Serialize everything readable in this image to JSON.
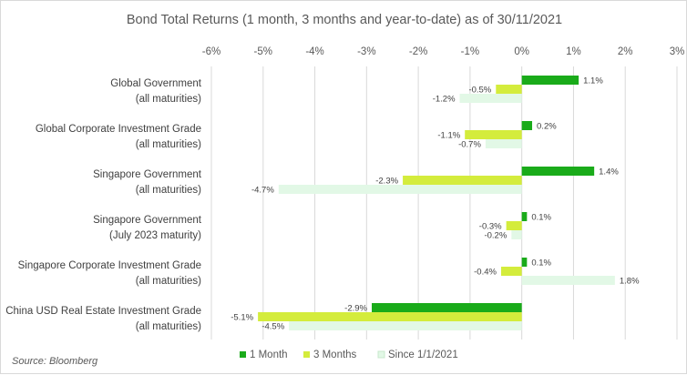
{
  "chart_data": {
    "type": "bar",
    "orientation": "horizontal",
    "title": "Bond Total Returns (1 month, 3 months and year-to-date) as of 30/11/2021",
    "categories": [
      [
        "Global Government",
        "(all maturities)"
      ],
      [
        "Global Corporate Investment Grade",
        "(all maturities)"
      ],
      [
        "Singapore Government",
        "(all maturities)"
      ],
      [
        "Singapore Government",
        "(July 2023 maturity)"
      ],
      [
        "Singapore Corporate Investment Grade",
        "(all maturities)"
      ],
      [
        "China USD Real Estate Investment Grade",
        "(all maturities)"
      ]
    ],
    "series": [
      {
        "name": "1 Month",
        "color": "#1aab1a",
        "values": [
          1.1,
          0.2,
          1.4,
          0.1,
          0.1,
          -2.9
        ]
      },
      {
        "name": "3 Months",
        "color": "#d4ec3c",
        "values": [
          -0.5,
          -1.1,
          -2.3,
          -0.3,
          -0.4,
          -5.1
        ]
      },
      {
        "name": "Since 1/1/2021",
        "color": "#e2f8e6",
        "values": [
          -1.2,
          -0.7,
          -4.7,
          -0.2,
          1.8,
          -4.5
        ]
      }
    ],
    "xlim": [
      -6,
      3
    ],
    "xticks": [
      -6,
      -5,
      -4,
      -3,
      -2,
      -1,
      0,
      1,
      2,
      3
    ],
    "tick_suffix": "%",
    "value_suffix": "%",
    "grid": true,
    "legend": "bottom",
    "source": "Source: Bloomberg"
  }
}
